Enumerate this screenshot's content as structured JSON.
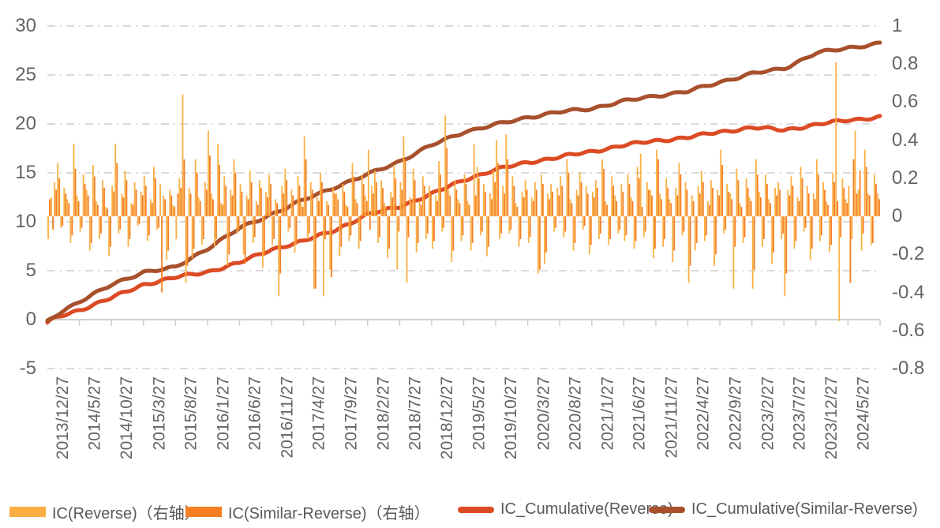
{
  "chart_data": {
    "type": "bar+line",
    "title": "",
    "legend_position": "bottom",
    "grid": {
      "show": true,
      "style": "dash-dot",
      "color": "#DADADA"
    },
    "axis_line_color": "#CFCFCF",
    "axis_label_color": "#636363",
    "legend_text_color": "#595959",
    "x_tick_labels": [
      "2013/12/27",
      "2014/5/27",
      "2014/10/27",
      "2015/3/27",
      "2015/8/27",
      "2016/1/27",
      "2016/6/27",
      "2016/11/27",
      "2017/4/27",
      "2017/9/27",
      "2018/2/27",
      "2018/7/27",
      "2018/12/27",
      "2019/5/27",
      "2019/10/27",
      "2020/3/27",
      "2020/8/27",
      "2021/1/27",
      "2021/6/27",
      "2021/11/27",
      "2022/4/27",
      "2022/9/27",
      "2023/2/27",
      "2023/7/27",
      "2023/12/27",
      "2024/5/27"
    ],
    "left_axis": {
      "side": "left",
      "range": [
        -5,
        30
      ],
      "tick_labels": [
        "30",
        "25",
        "20",
        "15",
        "10",
        "5",
        "0",
        "-5"
      ]
    },
    "right_axis": {
      "side": "right",
      "range": [
        -0.8,
        1
      ],
      "tick_labels": [
        "1",
        "0.8",
        "0.6",
        "0.4",
        "0.2",
        "0",
        "-0.2",
        "-0.4",
        "-0.6",
        "-0.8"
      ]
    },
    "series": [
      {
        "name": "IC(Reverse)（右轴）",
        "type": "bar",
        "axis": "right",
        "color": "#FBAF42",
        "values": [
          -0.12,
          0.1,
          0.18,
          0.28,
          -0.06,
          0.15,
          0.09,
          -0.14,
          0.38,
          0.11,
          -0.08,
          0.22,
          0.14,
          -0.18,
          0.27,
          0.08,
          -0.12,
          0.19,
          0.05,
          -0.21,
          0.16,
          0.38,
          -0.09,
          0.12,
          0.24,
          -0.16,
          0.07,
          0.18,
          -0.05,
          0.13,
          0.21,
          -0.13,
          0.09,
          0.26,
          -0.07,
          0.17,
          0.11,
          -0.23,
          0.14,
          0.06,
          -0.12,
          0.2,
          0.64,
          -0.35,
          0.15,
          -0.22,
          0.3,
          0.1,
          -0.15,
          0.18,
          0.45,
          0.12,
          -0.16,
          0.38,
          0.07,
          0.21,
          -0.26,
          0.14,
          0.3,
          -0.09,
          0.17,
          -0.2,
          0.11,
          0.24,
          -0.14,
          0.08,
          0.19,
          -0.27,
          0.13,
          0.22,
          -0.15,
          0.09,
          -0.42,
          0.16,
          0.25,
          -0.08,
          0.14,
          -0.19,
          0.21,
          0.07,
          0.42,
          -0.12,
          0.18,
          -0.38,
          0.1,
          0.23,
          -0.42,
          0.08,
          -0.28,
          0.15,
          0.12,
          -0.21,
          0.17,
          0.06,
          -0.13,
          0.28,
          0.09,
          -0.17,
          0.22,
          0.11,
          0.35,
          0.16,
          0.24,
          -0.14,
          0.19,
          0.07,
          -0.22,
          0.13,
          0.27,
          -0.28,
          0.18,
          0.42,
          -0.35,
          0.1,
          0.25,
          -0.19,
          0.08,
          0.21,
          -0.12,
          0.16,
          -0.17,
          0.11,
          0.29,
          -0.08,
          0.53,
          0.14,
          -0.24,
          0.19,
          0.09,
          -0.13,
          0.22,
          0.08,
          -0.18,
          0.38,
          0.26,
          -0.1,
          0.17,
          -0.21,
          0.12,
          0.24,
          0.4,
          -0.12,
          0.16,
          0.43,
          -0.09,
          0.21,
          0.07,
          -0.16,
          0.13,
          0.19,
          -0.14,
          0.1,
          0.18,
          -0.3,
          0.22,
          -0.25,
          0.12,
          0.17,
          -0.08,
          0.15,
          0.21,
          -0.11,
          0.3,
          0.09,
          -0.18,
          0.14,
          0.23,
          -0.07,
          0.16,
          -0.2,
          0.13,
          0.19,
          -0.12,
          0.3,
          0.08,
          -0.15,
          0.21,
          0.11,
          -0.09,
          0.17,
          -0.13,
          0.22,
          0.1,
          -0.17,
          0.26,
          0.33,
          -0.11,
          0.18,
          0.14,
          -0.22,
          0.35,
          0.12,
          -0.16,
          0.2,
          0.09,
          -0.24,
          0.15,
          0.28,
          -0.1,
          0.18,
          -0.35,
          0.11,
          -0.18,
          0.16,
          0.24,
          -0.13,
          0.08,
          0.19,
          -0.26,
          0.14,
          0.35,
          -0.09,
          0.17,
          0.12,
          -0.38,
          0.25,
          0.07,
          -0.14,
          0.2,
          0.1,
          -0.38,
          0.3,
          0.13,
          -0.16,
          0.22,
          0.09,
          -0.25,
          0.15,
          0.18,
          -0.12,
          -0.42,
          0.14,
          0.21,
          -0.17,
          0.1,
          0.26,
          -0.08,
          0.16,
          -0.23,
          0.12,
          0.3,
          -0.13,
          0.18,
          0.08,
          -0.19,
          0.23,
          0.81,
          -0.55,
          0.2,
          0.09,
          0.16,
          -0.12,
          0.45,
          0.14,
          -0.18,
          0.35,
          0.12,
          -0.15,
          0.22,
          0.12
        ]
      },
      {
        "name": "IC(Similar-Reverse)（右轴）",
        "type": "bar",
        "axis": "right",
        "color": "#F57E22",
        "values": [
          0.09,
          -0.07,
          0.14,
          0.2,
          -0.05,
          0.12,
          0.07,
          -0.1,
          0.25,
          0.08,
          -0.06,
          0.17,
          0.11,
          -0.14,
          0.21,
          0.06,
          -0.09,
          0.15,
          0.04,
          -0.16,
          0.13,
          0.28,
          -0.07,
          0.1,
          0.19,
          -0.12,
          0.06,
          0.14,
          -0.04,
          0.11,
          0.16,
          -0.1,
          0.07,
          0.2,
          -0.06,
          -0.4,
          0.09,
          -0.18,
          0.11,
          0.05,
          0.12,
          0.15,
          0.3,
          -0.26,
          0.12,
          -0.17,
          0.23,
          0.08,
          -0.12,
          0.14,
          0.32,
          0.09,
          -0.12,
          0.27,
          0.06,
          0.16,
          -0.2,
          0.11,
          0.23,
          -0.07,
          0.13,
          -0.25,
          0.09,
          0.18,
          -0.11,
          0.06,
          0.15,
          -0.21,
          0.1,
          0.17,
          -0.12,
          0.07,
          -0.3,
          0.12,
          0.19,
          -0.06,
          0.11,
          -0.15,
          0.16,
          0.05,
          0.3,
          -0.09,
          0.14,
          -0.38,
          0.08,
          0.18,
          -0.12,
          0.06,
          -0.32,
          0.12,
          0.09,
          -0.16,
          0.13,
          0.05,
          -0.1,
          0.21,
          0.07,
          -0.13,
          0.17,
          0.08,
          -0.07,
          0.12,
          0.18,
          -0.11,
          0.15,
          0.05,
          -0.17,
          0.1,
          0.2,
          -0.08,
          0.14,
          0.3,
          -0.11,
          0.08,
          0.19,
          -0.14,
          0.06,
          0.16,
          -0.09,
          0.12,
          -0.13,
          0.08,
          0.22,
          -0.06,
          0.36,
          0.11,
          -0.18,
          0.14,
          0.07,
          -0.1,
          0.17,
          0.06,
          -0.14,
          0.11,
          0.2,
          -0.08,
          0.13,
          -0.16,
          0.09,
          0.18,
          0.28,
          -0.09,
          0.12,
          0.3,
          -0.07,
          0.16,
          0.05,
          -0.12,
          0.1,
          0.14,
          -0.11,
          0.08,
          0.14,
          -0.28,
          0.17,
          -0.19,
          0.09,
          0.13,
          -0.06,
          0.11,
          0.16,
          -0.08,
          0.23,
          0.07,
          -0.14,
          0.11,
          0.18,
          -0.05,
          0.12,
          -0.15,
          0.1,
          0.15,
          -0.09,
          0.25,
          0.06,
          -0.12,
          0.16,
          0.08,
          -0.07,
          0.13,
          -0.1,
          0.17,
          0.08,
          -0.13,
          0.2,
          0.05,
          -0.08,
          0.14,
          0.11,
          -0.17,
          0.3,
          0.09,
          -0.12,
          0.15,
          0.07,
          -0.18,
          0.11,
          0.22,
          -0.08,
          0.14,
          -0.26,
          0.08,
          -0.14,
          0.12,
          0.18,
          -0.1,
          0.06,
          0.15,
          -0.2,
          0.11,
          0.27,
          -0.07,
          0.13,
          0.09,
          -0.16,
          0.19,
          0.05,
          -0.11,
          0.15,
          0.08,
          -0.28,
          0.22,
          0.1,
          -0.12,
          0.17,
          0.07,
          -0.19,
          0.11,
          0.14,
          -0.09,
          -0.3,
          0.11,
          0.16,
          -0.13,
          0.08,
          0.2,
          -0.06,
          0.12,
          -0.17,
          0.09,
          0.22,
          -0.1,
          0.14,
          0.06,
          -0.15,
          0.18,
          0.08,
          -0.11,
          0.15,
          0.07,
          -0.35,
          0.3,
          0.12,
          0.24,
          -0.09,
          0.26,
          0.11,
          -0.14,
          0.17,
          0.09
        ]
      },
      {
        "name": "IC_Cumulative(Reverse)",
        "type": "line",
        "axis": "left",
        "color": "#DC4B24",
        "wiggle": 0.11,
        "start_dip": 0.35,
        "values": [
          0,
          1.0,
          2.2,
          3.6,
          4.3,
          4.9,
          5.8,
          7.2,
          8.0,
          9.2,
          10.7,
          11.6,
          12.8,
          14.3,
          15.3,
          16.1,
          16.6,
          17.2,
          17.8,
          18.3,
          18.6,
          19.2,
          19.6,
          19.4,
          19.9,
          20.4,
          20.7
        ]
      },
      {
        "name": "IC_Cumulative(Similar-Reverse)",
        "type": "line",
        "axis": "left",
        "color": "#A8502C",
        "wiggle": 0.11,
        "start_dip": 0.25,
        "values": [
          0,
          1.9,
          3.5,
          4.9,
          5.3,
          7.3,
          9.3,
          10.8,
          12.2,
          13.6,
          14.8,
          16.2,
          17.8,
          19.2,
          19.9,
          20.7,
          21.2,
          21.6,
          22.3,
          22.9,
          23.3,
          24.3,
          25.1,
          25.7,
          27.2,
          27.8,
          28.2
        ]
      }
    ]
  }
}
